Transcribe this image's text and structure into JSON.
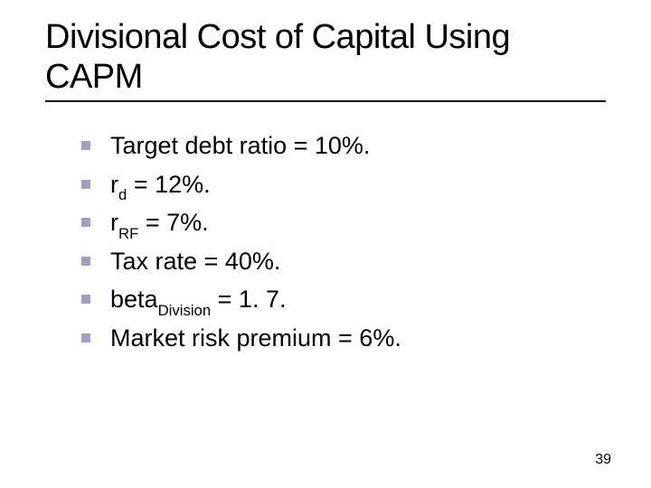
{
  "title": "Divisional Cost of Capital Using CAPM",
  "bullets": [
    {
      "pre": "Target debt ratio = 10%.",
      "sub": "",
      "post": ""
    },
    {
      "pre": "r",
      "sub": "d",
      "post": " = 12%."
    },
    {
      "pre": "r",
      "sub": "RF",
      "post": " = 7%."
    },
    {
      "pre": "Tax rate = 40%.",
      "sub": "",
      "post": ""
    },
    {
      "pre": "beta",
      "sub": "Division",
      "post": " = 1. 7."
    },
    {
      "pre": "Market risk premium = 6%.",
      "sub": "",
      "post": ""
    }
  ],
  "page_number": "39",
  "style": {
    "bullet_color": "#9ea0c6",
    "title_fontsize": 38,
    "body_fontsize": 27,
    "background": "#ffffff",
    "text_color": "#000000"
  }
}
